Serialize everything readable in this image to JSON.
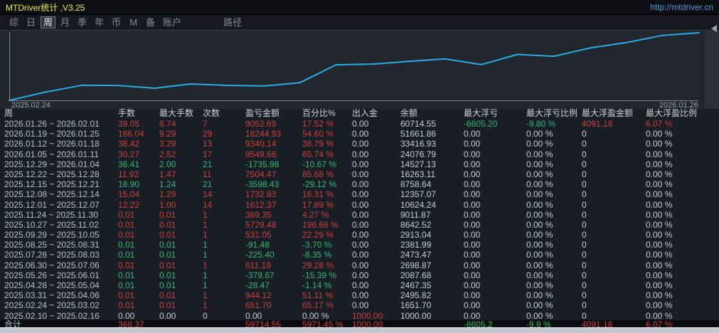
{
  "window": {
    "title": "MTDriver统计 ,V3.25",
    "url": "http://mtdriver.cn"
  },
  "menu": {
    "items": [
      {
        "label": "综"
      },
      {
        "label": "日"
      },
      {
        "label": "周",
        "selected": true
      },
      {
        "label": "月"
      },
      {
        "label": "季"
      },
      {
        "label": "年"
      },
      {
        "label": "币"
      },
      {
        "label": "M"
      },
      {
        "label": "备"
      },
      {
        "label": "账户"
      },
      {
        "label": "路径",
        "gap_before": true
      }
    ]
  },
  "chart_data": {
    "type": "line",
    "title": "",
    "xlabel": "",
    "ylabel": "",
    "legend": false,
    "grid": false,
    "y_scale": "log",
    "y_range": [
      1000,
      60714.55
    ],
    "x_axis_start_label": "2025.02.24",
    "x_axis_end_label": "2026.01.26",
    "series": [
      {
        "name": "余额",
        "x": [
          "2025.02.10",
          "2025.02.24",
          "2025.03.31",
          "2025.04.28",
          "2025.05.26",
          "2025.06.30",
          "2025.07.28",
          "2025.08.25",
          "2025.09.29",
          "2025.10.27",
          "2025.11.24",
          "2025.12.01",
          "2025.12.08",
          "2025.12.15",
          "2025.12.22",
          "2025.12.29",
          "2026.01.05",
          "2026.01.12",
          "2026.01.19",
          "2026.01.26"
        ],
        "values": [
          1000.0,
          1651.7,
          2495.82,
          2467.35,
          2087.68,
          2698.87,
          2473.47,
          2381.99,
          2913.04,
          8642.52,
          9011.87,
          10624.24,
          12357.07,
          8758.64,
          16263.11,
          14527.13,
          24076.79,
          33416.93,
          51661.86,
          60714.55
        ]
      }
    ]
  },
  "table": {
    "headers": [
      "周",
      "手数",
      "最大手数",
      "次数",
      "盈亏金额",
      "百分比%",
      "出入金",
      "余额",
      "最大浮亏",
      "最大浮亏比例",
      "最大浮盈金额",
      "最大浮盈比例"
    ],
    "rows": [
      [
        "2026.01.26 ~ 2026.02.01",
        "39.05",
        "6.74",
        "7",
        "9052.69",
        "17.52 %",
        "0.00",
        "60714.55",
        "-6605.20",
        "-9.80 %",
        "4091.18",
        "6.07 %"
      ],
      [
        "2026.01.19 ~ 2026.01.25",
        "166.04",
        "9.29",
        "29",
        "18244.93",
        "54.60 %",
        "0.00",
        "51661.86",
        "0.00",
        "0.00 %",
        "0",
        "0.00 %"
      ],
      [
        "2026.01.12 ~ 2026.01.18",
        "38.42",
        "3.29",
        "13",
        "9340.14",
        "38.79 %",
        "0.00",
        "33416.93",
        "0.00",
        "0.00 %",
        "0",
        "0.00 %"
      ],
      [
        "2026.01.05 ~ 2026.01.11",
        "30.27",
        "2.52",
        "17",
        "9549.66",
        "65.74 %",
        "0.00",
        "24076.79",
        "0.00",
        "0.00 %",
        "0",
        "0.00 %"
      ],
      [
        "2025.12.29 ~ 2026.01.04",
        "36.41",
        "2.00",
        "21",
        "-1735.98",
        "-10.67 %",
        "0.00",
        "14527.13",
        "0.00",
        "0.00 %",
        "0",
        "0.00 %"
      ],
      [
        "2025.12.22 ~ 2025.12.28",
        "11.92",
        "1.47",
        "11",
        "7504.47",
        "85.68 %",
        "0.00",
        "16263.11",
        "0.00",
        "0.00 %",
        "0",
        "0.00 %"
      ],
      [
        "2025.12.15 ~ 2025.12.21",
        "18.90",
        "1.24",
        "21",
        "-3598.43",
        "-29.12 %",
        "0.00",
        "8758.64",
        "0.00",
        "0.00 %",
        "0",
        "0.00 %"
      ],
      [
        "2025.12.08 ~ 2025.12.14",
        "15.04",
        "1.29",
        "14",
        "1732.83",
        "16.31 %",
        "0.00",
        "12357.07",
        "0.00",
        "0.00 %",
        "0",
        "0.00 %"
      ],
      [
        "2025.12.01 ~ 2025.12.07",
        "12.22",
        "1.00",
        "14",
        "1612.37",
        "17.89 %",
        "0.00",
        "10624.24",
        "0.00",
        "0.00 %",
        "0",
        "0.00 %"
      ],
      [
        "2025.11.24 ~ 2025.11.30",
        "0.01",
        "0.01",
        "1",
        "369.35",
        "4.27 %",
        "0.00",
        "9011.87",
        "0.00",
        "0.00 %",
        "0",
        "0.00 %"
      ],
      [
        "2025.10.27 ~ 2025.11.02",
        "0.01",
        "0.01",
        "1",
        "5729.48",
        "196.68 %",
        "0.00",
        "8642.52",
        "0.00",
        "0.00 %",
        "0",
        "0.00 %"
      ],
      [
        "2025.09.29 ~ 2025.10.05",
        "0.01",
        "0.01",
        "1",
        "531.05",
        "22.29 %",
        "0.00",
        "2913.04",
        "0.00",
        "0.00 %",
        "0",
        "0.00 %"
      ],
      [
        "2025.08.25 ~ 2025.08.31",
        "0.01",
        "0.01",
        "1",
        "-91.48",
        "-3.70 %",
        "0.00",
        "2381.99",
        "0.00",
        "0.00 %",
        "0",
        "0.00 %"
      ],
      [
        "2025.07.28 ~ 2025.08.03",
        "0.01",
        "0.01",
        "1",
        "-225.40",
        "-8.35 %",
        "0.00",
        "2473.47",
        "0.00",
        "0.00 %",
        "0",
        "0.00 %"
      ],
      [
        "2025.06.30 ~ 2025.07.06",
        "0.01",
        "0.01",
        "1",
        "611.19",
        "29.28 %",
        "0.00",
        "2698.87",
        "0.00",
        "0.00 %",
        "0",
        "0.00 %"
      ],
      [
        "2025.05.26 ~ 2025.06.01",
        "0.01",
        "0.01",
        "1",
        "-379.67",
        "-15.39 %",
        "0.00",
        "2087.68",
        "0.00",
        "0.00 %",
        "0",
        "0.00 %"
      ],
      [
        "2025.04.28 ~ 2025.05.04",
        "0.01",
        "0.01",
        "1",
        "-28.47",
        "-1.14 %",
        "0.00",
        "2467.35",
        "0.00",
        "0.00 %",
        "0",
        "0.00 %"
      ],
      [
        "2025.03.31 ~ 2025.04.06",
        "0.01",
        "0.01",
        "1",
        "844.12",
        "51.11 %",
        "0.00",
        "2495.82",
        "0.00",
        "0.00 %",
        "0",
        "0.00 %"
      ],
      [
        "2025.02.24 ~ 2025.03.02",
        "0.01",
        "0.01",
        "1",
        "651.70",
        "65.17 %",
        "0.00",
        "1651.70",
        "0.00",
        "0.00 %",
        "0",
        "0.00 %"
      ],
      [
        "2025.02.10 ~ 2025.02.16",
        "0.00",
        "0.00",
        "0",
        "0.00",
        "0.00 %",
        "1000.00",
        "1000.00",
        "0.00",
        "0.00 %",
        "0",
        "0.00 %"
      ]
    ],
    "total": [
      "合计",
      "368.37",
      "",
      "",
      "59714.55",
      "5971.45 %",
      "1000.00",
      "",
      "-6605.2",
      "-9.8 %",
      "4091.18",
      "6.07 %"
    ]
  },
  "colors": {
    "profit_red": "#cb4040",
    "loss_green": "#30ba78",
    "title_yellow": "#f1ed35",
    "url_blue": "#4f9ad5",
    "line_cyan": "#27ade6"
  }
}
